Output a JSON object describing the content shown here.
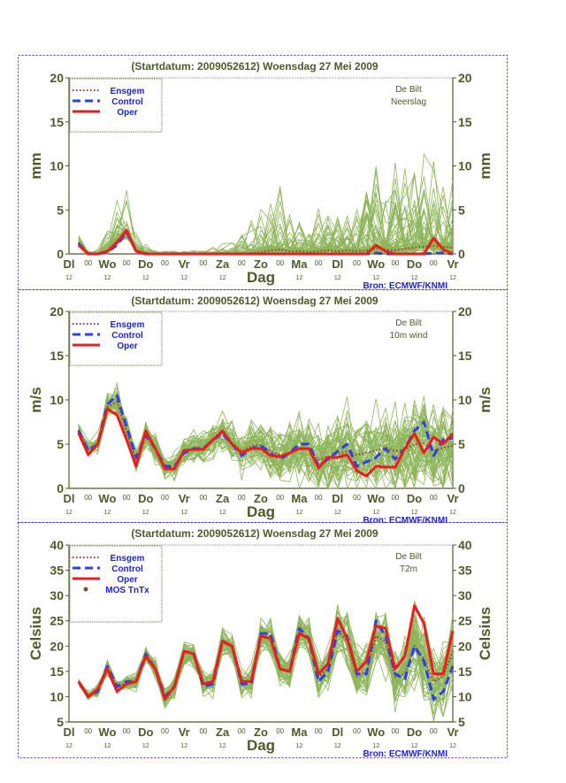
{
  "header": {
    "title": "(Startdatum: 2009052612)   Woensdag  27 Mei       2009",
    "source": "Bron: ECMWF/KNMI"
  },
  "legend": {
    "ensgem": "Ensgem",
    "control": "Control",
    "oper": "Oper",
    "mos": "MOS TnTx"
  },
  "colors": {
    "axis": "#4f5a2a",
    "ensemble": "#8db55a",
    "ensgem": "#9b3b2b",
    "control": "#2f3ff0",
    "oper": "#ee1c1c",
    "legend_text": "#2020e0",
    "frame": "#3a3ad0"
  },
  "chart_data": [
    {
      "type": "line",
      "title": "(Startdatum: 2009052612)   Woensdag  27 Mei       2009",
      "station": "De Bilt",
      "variable": "Neerslag",
      "ylabel": "mm",
      "xlabel": "Dag",
      "ylim": [
        0,
        20
      ],
      "yticks": [
        0,
        5,
        10,
        15,
        20
      ],
      "x_day_labels": [
        "Dl",
        "Wo",
        "Do",
        "Vr",
        "Za",
        "Zo",
        "Ma",
        "Dl",
        "Wo",
        "Do",
        "Vr"
      ],
      "x_hour_label_mid": "00",
      "x_hour_label_day": "12",
      "grid": false,
      "legend_position": "top-left",
      "series": [
        {
          "name": "Oper",
          "values": [
            1,
            0,
            0,
            0.3,
            1.3,
            2.7,
            0.3,
            0,
            0,
            0,
            0,
            0,
            0,
            0,
            0,
            0,
            0,
            0,
            0,
            0,
            0,
            0,
            0,
            0,
            0,
            0,
            0,
            0,
            0,
            0,
            0,
            1,
            0.3,
            0,
            0,
            0,
            0,
            1.8,
            0.5,
            0
          ]
        },
        {
          "name": "Control",
          "values": [
            1.2,
            0,
            0,
            0.2,
            1,
            2.5,
            0.3,
            0,
            0,
            0,
            0,
            0,
            0,
            0,
            0,
            0,
            0,
            0,
            0,
            0,
            0,
            0,
            0,
            0,
            0,
            0,
            0,
            0,
            0,
            0,
            0,
            0.1,
            0,
            0,
            0,
            0,
            0,
            0.1,
            0.1,
            0
          ]
        },
        {
          "name": "Ensgem",
          "values": [
            1.3,
            0,
            0,
            0.3,
            1.5,
            2.3,
            0.4,
            0.1,
            0,
            0,
            0,
            0,
            0,
            0,
            0,
            0,
            0,
            0,
            0.1,
            0.2,
            0.4,
            0.5,
            0.3,
            0.3,
            0.2,
            0.3,
            0.4,
            0.3,
            0.4,
            0.3,
            0.4,
            0.6,
            0.5,
            0.4,
            0.6,
            0.7,
            0.8,
            0.9,
            0.8,
            0.7
          ]
        }
      ],
      "ensemble_spread": [
        0.3,
        0.1,
        0.2,
        0.8,
        1.5,
        2,
        0.6,
        0.3,
        0.1,
        0.1,
        0.1,
        0.1,
        0.1,
        0.1,
        0.2,
        0.3,
        0.5,
        0.8,
        1.2,
        1.8,
        2,
        2,
        1.8,
        1.5,
        1.2,
        1.5,
        1.8,
        1.8,
        1.6,
        1.8,
        2.5,
        3,
        3,
        3,
        2.8,
        3,
        3,
        3,
        2.8,
        2.5
      ]
    },
    {
      "type": "line",
      "title": "(Startdatum: 2009052612)   Woensdag  27 Mei       2009",
      "station": "De Bilt",
      "variable": "10m wind",
      "ylabel": "m/s",
      "xlabel": "Dag",
      "ylim": [
        0,
        20
      ],
      "yticks": [
        0,
        5,
        10,
        15,
        20
      ],
      "x_day_labels": [
        "Dl",
        "Wo",
        "Do",
        "Vr",
        "Za",
        "Zo",
        "Ma",
        "Dl",
        "Wo",
        "Do",
        "Vr"
      ],
      "x_hour_label_mid": "00",
      "x_hour_label_day": "12",
      "grid": false,
      "legend_position": "top-left",
      "series": [
        {
          "name": "Oper",
          "values": [
            6.3,
            3.8,
            5,
            9,
            8.3,
            5.5,
            2.5,
            6.5,
            4.5,
            2.2,
            2.2,
            4.3,
            4.4,
            4.4,
            5.5,
            6.5,
            5,
            4,
            4.5,
            4.5,
            3.7,
            3.6,
            4,
            4.5,
            4.5,
            2.3,
            3.5,
            3.5,
            3.8,
            2,
            1.4,
            2.5,
            2.4,
            2.4,
            4.5,
            6.2,
            4,
            5.8,
            5,
            6.2
          ]
        },
        {
          "name": "Control",
          "values": [
            6.5,
            4.3,
            5,
            9.5,
            10.5,
            7,
            3.5,
            6,
            4.5,
            2.5,
            2.5,
            4,
            4.5,
            4.5,
            5.5,
            6.2,
            5,
            3.7,
            4.5,
            4.8,
            4,
            3.3,
            4,
            5,
            5,
            2.5,
            3.3,
            4.2,
            5,
            2.5,
            3,
            3.5,
            4.5,
            3.3,
            4.5,
            6.5,
            7.5,
            3.7,
            5.5,
            5.7
          ]
        },
        {
          "name": "Ensgem",
          "values": [
            6.6,
            4.4,
            5,
            9.2,
            9.8,
            6.5,
            3.2,
            6,
            4.5,
            2.4,
            2.4,
            4.2,
            4.5,
            4.6,
            5.5,
            6.3,
            5.1,
            4.2,
            4.8,
            4.9,
            4.2,
            3.8,
            4,
            4.5,
            4.4,
            3.2,
            3.6,
            3.9,
            4.2,
            3.8,
            4,
            4.3,
            4.6,
            4.2,
            4.4,
            5,
            5.1,
            4.2,
            4.6,
            4.8
          ]
        }
      ],
      "ensemble_spread": [
        0.4,
        0.4,
        0.5,
        0.7,
        0.8,
        0.8,
        0.7,
        0.7,
        0.7,
        0.7,
        0.7,
        0.7,
        0.8,
        0.9,
        1,
        1.1,
        1.1,
        1.1,
        1.2,
        1.3,
        1.4,
        1.6,
        1.8,
        1.9,
        1.9,
        1.8,
        1.9,
        2,
        2.1,
        2.1,
        2.1,
        2.2,
        2.3,
        2.3,
        2.3,
        2.3,
        2.4,
        2.4,
        2.5,
        2.5
      ]
    },
    {
      "type": "line",
      "title": "(Startdatum: 2009052612)   Woensdag  27 Mei       2009",
      "station": "De Bilt",
      "variable": "T2m",
      "ylabel": "Celsius",
      "xlabel": "Dag",
      "ylim": [
        5,
        40
      ],
      "yticks": [
        5,
        10,
        15,
        20,
        25,
        30,
        35,
        40
      ],
      "x_day_labels": [
        "Dl",
        "Wo",
        "Do",
        "Vr",
        "Za",
        "Zo",
        "Ma",
        "Dl",
        "Wo",
        "Do",
        "Vr"
      ],
      "x_hour_label_mid": "00",
      "x_hour_label_day": "12",
      "grid": false,
      "legend_position": "top-left",
      "series": [
        {
          "name": "Oper",
          "values": [
            13,
            10,
            11.5,
            15.5,
            11,
            12.5,
            13,
            18,
            15.5,
            9.5,
            12,
            19,
            18.5,
            12.5,
            13,
            21,
            20,
            13,
            13,
            22,
            21.5,
            15.5,
            15,
            22.5,
            21.5,
            14.5,
            16.5,
            25.5,
            21.5,
            15,
            17,
            24,
            23.5,
            15.5,
            18,
            28,
            24.5,
            14.5,
            14.5,
            23
          ]
        },
        {
          "name": "Control",
          "values": [
            13,
            10,
            11,
            16,
            12,
            13,
            13,
            18.5,
            15.5,
            10,
            12,
            19,
            18.5,
            12,
            12.5,
            21,
            20,
            12.5,
            12.5,
            22.5,
            22.5,
            15.5,
            15,
            23.5,
            21.5,
            13,
            15,
            23,
            22,
            14.5,
            14.5,
            25,
            22,
            14.5,
            13.5,
            20,
            17,
            9.5,
            11,
            16
          ]
        },
        {
          "name": "Ensgem",
          "values": [
            13,
            10.2,
            11.2,
            15.8,
            11.8,
            12.8,
            13,
            18.2,
            15.6,
            10,
            12,
            18.8,
            18.4,
            12.5,
            12.8,
            20.8,
            19.8,
            12.8,
            12.8,
            22,
            21.8,
            15.5,
            15,
            22.8,
            21.3,
            14,
            15.5,
            23,
            21,
            14,
            15,
            22,
            21,
            14,
            14.5,
            20,
            17.5,
            13,
            14,
            19
          ]
        }
      ],
      "ensemble_spread": [
        0.3,
        0.4,
        0.5,
        0.6,
        0.6,
        0.7,
        0.8,
        0.9,
        0.9,
        1,
        1,
        1.2,
        1.2,
        1.1,
        1.2,
        1.4,
        1.4,
        1.3,
        1.4,
        1.6,
        1.6,
        1.5,
        1.6,
        1.8,
        1.9,
        1.8,
        2,
        2.4,
        2.5,
        2.4,
        2.6,
        3,
        3.1,
        3,
        3.2,
        3.6,
        3.6,
        3.4,
        3.6,
        3.8
      ]
    }
  ]
}
